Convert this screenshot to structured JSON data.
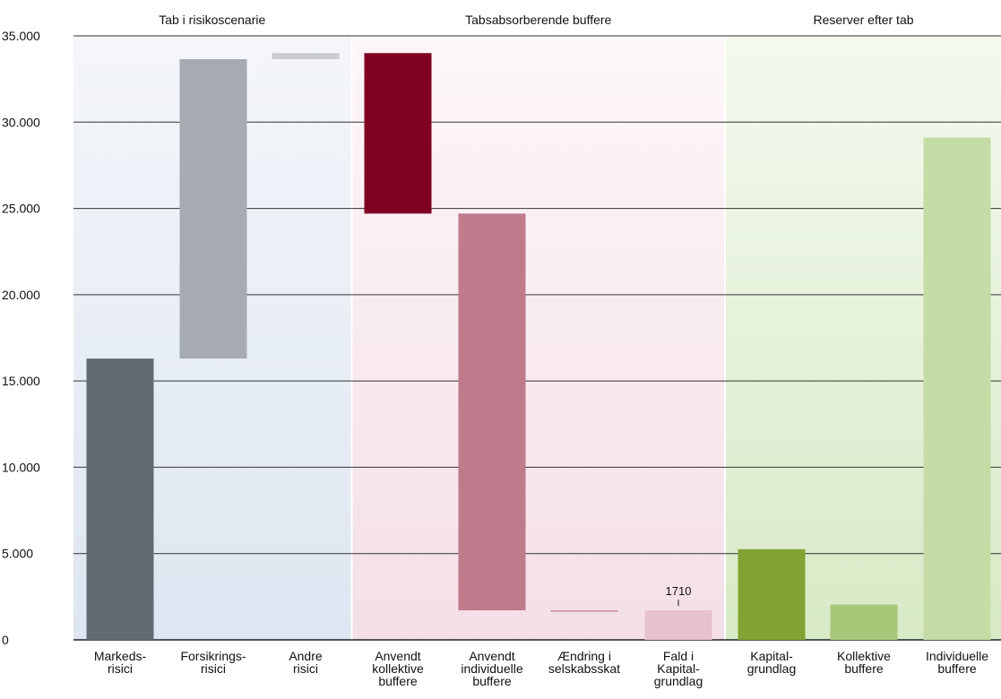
{
  "chart_data": {
    "type": "bar",
    "subtype": "waterfall",
    "title": "",
    "xlabel": "",
    "ylabel": "",
    "ylim": [
      0,
      35000
    ],
    "yticks": [
      0,
      5000,
      10000,
      15000,
      20000,
      25000,
      30000,
      35000
    ],
    "ytick_labels": [
      "0",
      "5.000",
      "10.000",
      "15.000",
      "20.000",
      "25.000",
      "30.000",
      "35.000"
    ],
    "grid": true,
    "sections": [
      {
        "label": "Tab i risikoscenarie",
        "from": 0,
        "to": 2,
        "bg_top": "#f4f6fa",
        "bg_bottom": "#dde6f1"
      },
      {
        "label": "Tabsabsorberende buffere",
        "from": 3,
        "to": 6,
        "bg_top": "#fdf7f9",
        "bg_bottom": "#f4dfe7"
      },
      {
        "label": "Reserver efter tab",
        "from": 7,
        "to": 9,
        "bg_top": "#f4f9ef",
        "bg_bottom": "#d7eac6"
      }
    ],
    "categories": [
      [
        "Markeds-",
        "risici"
      ],
      [
        "Forsikrings-",
        "risici"
      ],
      [
        "Andre",
        "risici"
      ],
      [
        "Anvendt",
        "kollektive",
        "buffere"
      ],
      [
        "Anvendt",
        "individuelle",
        "buffere"
      ],
      [
        "Ændring i",
        "selskabsskat"
      ],
      [
        "Fald i",
        "Kapital-",
        "grundlag"
      ],
      [
        "Kapital-",
        "grundlag"
      ],
      [
        "Kollektive",
        "buffere"
      ],
      [
        "Individuelle",
        "buffere"
      ]
    ],
    "bars": [
      {
        "base": 0,
        "top": 16300,
        "color": "#636a73"
      },
      {
        "base": 16300,
        "top": 33650,
        "color": "#a6aab1"
      },
      {
        "base": 33650,
        "top": 34000,
        "color": "#c8ccd1"
      },
      {
        "base": 24700,
        "top": 34000,
        "color": "#800023"
      },
      {
        "base": 1710,
        "top": 24700,
        "color": "#bf7a8c"
      },
      {
        "base": 1650,
        "top": 1710,
        "color": "#c98a9b"
      },
      {
        "base": 0,
        "top": 1710,
        "color": "#e7c3cf"
      },
      {
        "base": 0,
        "top": 5250,
        "color": "#80a333"
      },
      {
        "base": 0,
        "top": 2050,
        "color": "#a9c779"
      },
      {
        "base": 0,
        "top": 29100,
        "color": "#c6dca6"
      }
    ],
    "data_labels": [
      {
        "bar": 6,
        "text": "1710"
      }
    ]
  }
}
